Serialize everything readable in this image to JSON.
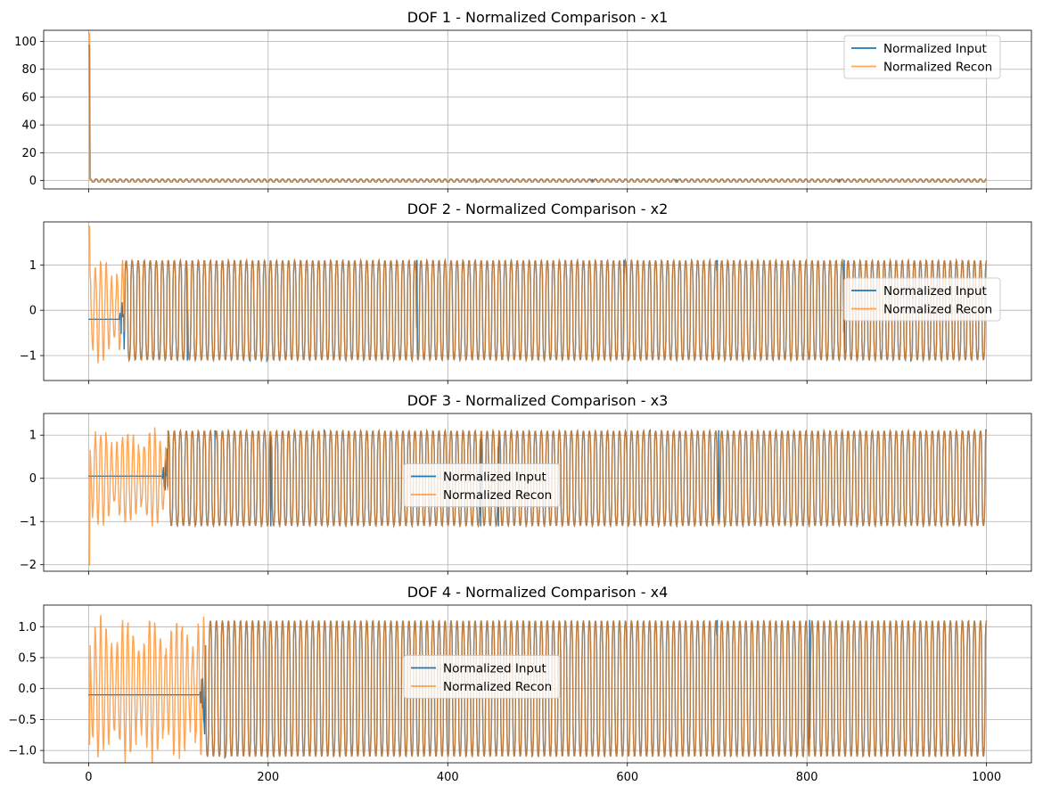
{
  "colors": {
    "input": "#1f77b4",
    "recon": "#ff7f0e",
    "grid": "#b0b0b0",
    "axes": "#000000",
    "background": "#ffffff"
  },
  "chart_data": [
    {
      "type": "line",
      "title": "DOF 1 - Normalized Comparison - x1",
      "xlim": [
        -50,
        1050
      ],
      "ylim": [
        -6,
        108
      ],
      "yticks": [
        0,
        20,
        40,
        60,
        80,
        100
      ],
      "ytick_labels": [
        "0",
        "20",
        "40",
        "60",
        "80",
        "100"
      ],
      "grid": true,
      "legend_position": "upper right",
      "signal": {
        "x_range": [
          0,
          1000
        ],
        "steady_amplitude": 1.1,
        "period": 6.7,
        "input_initial": 97,
        "recon_initial": 106,
        "input_lock_x": 0,
        "recon_lock_x": 0
      },
      "series": [
        {
          "name": "Normalized Input"
        },
        {
          "name": "Normalized Recon"
        }
      ]
    },
    {
      "type": "line",
      "title": "DOF 2 - Normalized Comparison - x2",
      "xlim": [
        -50,
        1050
      ],
      "ylim": [
        -1.55,
        1.95
      ],
      "yticks": [
        -1,
        0,
        1
      ],
      "ytick_labels": [
        "−1",
        "0",
        "1"
      ],
      "grid": true,
      "legend_position": "center right",
      "signal": {
        "x_range": [
          0,
          1000
        ],
        "steady_amplitude": 1.1,
        "period": 6.7,
        "input_initial": -0.2,
        "recon_initial": 1.85,
        "input_lock_x": 40,
        "recon_lock_x": 40
      },
      "series": [
        {
          "name": "Normalized Input"
        },
        {
          "name": "Normalized Recon"
        }
      ]
    },
    {
      "type": "line",
      "title": "DOF 3 - Normalized Comparison - x3",
      "xlim": [
        -50,
        1050
      ],
      "ylim": [
        -2.15,
        1.5
      ],
      "yticks": [
        -2,
        -1,
        0,
        1
      ],
      "ytick_labels": [
        "−2",
        "−1",
        "0",
        "1"
      ],
      "grid": true,
      "legend_position": "center",
      "signal": {
        "x_range": [
          0,
          1000
        ],
        "steady_amplitude": 1.1,
        "period": 6.7,
        "input_initial": 0.05,
        "recon_initial": -2.0,
        "input_lock_x": 88,
        "recon_lock_x": 88
      },
      "series": [
        {
          "name": "Normalized Input"
        },
        {
          "name": "Normalized Recon"
        }
      ]
    },
    {
      "type": "line",
      "title": "DOF 4 - Normalized Comparison - x4",
      "xlim": [
        -50,
        1050
      ],
      "ylim": [
        -1.2,
        1.35
      ],
      "yticks": [
        -1.0,
        -0.5,
        0.0,
        0.5,
        1.0
      ],
      "ytick_labels": [
        "−1.0",
        "−0.5",
        "0.0",
        "0.5",
        "1.0"
      ],
      "xticks": [
        0,
        200,
        400,
        600,
        800,
        1000
      ],
      "xtick_labels": [
        "0",
        "200",
        "400",
        "600",
        "800",
        "1000"
      ],
      "grid": true,
      "legend_position": "center",
      "signal": {
        "x_range": [
          0,
          1000
        ],
        "steady_amplitude": 1.1,
        "period": 6.7,
        "input_initial": -0.1,
        "recon_initial": -0.9,
        "input_lock_x": 130,
        "recon_lock_x": 130
      },
      "series": [
        {
          "name": "Normalized Input"
        },
        {
          "name": "Normalized Recon"
        }
      ]
    }
  ]
}
